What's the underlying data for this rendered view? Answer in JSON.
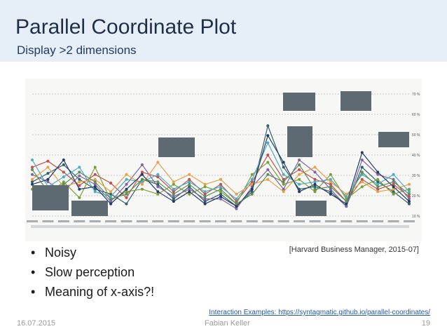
{
  "slide": {
    "title": "Parallel Coordinate Plot",
    "subtitle": "Display >2 dimensions",
    "bullets": [
      "Noisy",
      "Slow perception",
      "Meaning of x-axis?!"
    ],
    "citation": "[Harvard Business Manager, 2015-07]",
    "link": "Interaction Examples: https://syntagmatic.github.io/parallel-coordinates/",
    "footer": {
      "date": "16.07.2015",
      "author": "Fabian Keller",
      "page": "19"
    }
  },
  "colors": {
    "header_bg": "#e6eef7",
    "title": "#1f2f4a",
    "link": "#1f5aa6",
    "series": [
      "#2f5f6a",
      "#c0504d",
      "#7a9e3b",
      "#8064a2",
      "#4bacc6",
      "#e6a04a",
      "#1f3b66",
      "#5b8c5a",
      "#9e4a6a",
      "#6a6a6a"
    ]
  },
  "figure": {
    "y_ticks": [
      "70 %",
      "60 %",
      "50 %",
      "40 %",
      "30 %",
      "20 %",
      "10 %"
    ],
    "series": [
      [
        0.28,
        0.35,
        0.42,
        0.3,
        0.22,
        0.18,
        0.1,
        0.3,
        0.26,
        0.14,
        0.24,
        0.12,
        0.18,
        0.08,
        0.2,
        0.74,
        0.4,
        0.22,
        0.24,
        0.2,
        0.08,
        0.4,
        0.28,
        0.2,
        0.1
      ],
      [
        0.4,
        0.45,
        0.36,
        0.25,
        0.34,
        0.27,
        0.15,
        0.36,
        0.32,
        0.2,
        0.3,
        0.18,
        0.26,
        0.12,
        0.28,
        0.5,
        0.3,
        0.38,
        0.3,
        0.26,
        0.12,
        0.3,
        0.22,
        0.26,
        0.16
      ],
      [
        0.22,
        0.18,
        0.28,
        0.15,
        0.4,
        0.13,
        0.2,
        0.22,
        0.18,
        0.26,
        0.18,
        0.24,
        0.2,
        0.1,
        0.34,
        0.44,
        0.26,
        0.3,
        0.2,
        0.34,
        0.14,
        0.24,
        0.3,
        0.18,
        0.22
      ],
      [
        0.34,
        0.28,
        0.2,
        0.33,
        0.26,
        0.12,
        0.26,
        0.42,
        0.24,
        0.16,
        0.22,
        0.14,
        0.14,
        0.06,
        0.24,
        0.38,
        0.22,
        0.46,
        0.36,
        0.22,
        0.08,
        0.46,
        0.34,
        0.3,
        0.14
      ],
      [
        0.46,
        0.24,
        0.32,
        0.4,
        0.2,
        0.16,
        0.3,
        0.28,
        0.34,
        0.22,
        0.28,
        0.2,
        0.24,
        0.14,
        0.3,
        0.6,
        0.34,
        0.26,
        0.28,
        0.3,
        0.16,
        0.34,
        0.26,
        0.34,
        0.2
      ],
      [
        0.3,
        0.4,
        0.24,
        0.28,
        0.3,
        0.2,
        0.34,
        0.26,
        0.44,
        0.28,
        0.34,
        0.26,
        0.3,
        0.18,
        0.26,
        0.3,
        0.2,
        0.34,
        0.4,
        0.28,
        0.18,
        0.28,
        0.2,
        0.22,
        0.26
      ],
      [
        0.26,
        0.3,
        0.46,
        0.22,
        0.24,
        0.1,
        0.22,
        0.34,
        0.2,
        0.12,
        0.2,
        0.1,
        0.16,
        0.08,
        0.22,
        0.66,
        0.44,
        0.2,
        0.26,
        0.18,
        0.1,
        0.52,
        0.36,
        0.24,
        0.12
      ],
      [
        0.38,
        0.2,
        0.26,
        0.36,
        0.28,
        0.14,
        0.18,
        0.3,
        0.28,
        0.18,
        0.26,
        0.16,
        0.22,
        0.1,
        0.18,
        0.34,
        0.28,
        0.42,
        0.22,
        0.24,
        0.12,
        0.36,
        0.24,
        0.28,
        0.18
      ]
    ]
  }
}
